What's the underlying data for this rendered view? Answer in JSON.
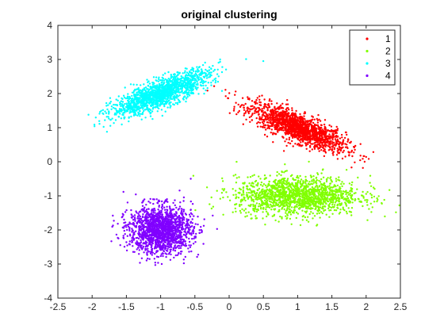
{
  "chart_data": {
    "type": "scatter",
    "title": "original clustering",
    "xlabel": "",
    "ylabel": "",
    "xlim": [
      -2.5,
      2.5
    ],
    "ylim": [
      -4,
      4
    ],
    "xticks": [
      -2.5,
      -2,
      -1.5,
      -1,
      -0.5,
      0,
      0.5,
      1,
      1.5,
      2,
      2.5
    ],
    "xtick_labels": [
      "-2.5",
      "-2",
      "-1.5",
      "-1",
      "-0.5",
      "0",
      "0.5",
      "1",
      "1.5",
      "2",
      "2.5"
    ],
    "yticks": [
      -4,
      -3,
      -2,
      -1,
      0,
      1,
      2,
      3,
      4
    ],
    "ytick_labels": [
      "-4",
      "-3",
      "-2",
      "-1",
      "0",
      "1",
      "2",
      "3",
      "4"
    ],
    "grid": false,
    "legend_position": "top-right",
    "series": [
      {
        "name": "1",
        "color": "#ff0000",
        "center": [
          1.0,
          1.0
        ],
        "spread": [
          0.35,
          0.35
        ],
        "rho": -0.8,
        "count": 1600
      },
      {
        "name": "2",
        "color": "#80ff00",
        "center": [
          1.0,
          -1.0
        ],
        "spread": [
          0.45,
          0.28
        ],
        "rho": 0.0,
        "count": 1600
      },
      {
        "name": "3",
        "color": "#00ffff",
        "center": [
          -1.0,
          2.0
        ],
        "spread": [
          0.35,
          0.33
        ],
        "rho": 0.8,
        "count": 1600
      },
      {
        "name": "4",
        "color": "#8000ff",
        "center": [
          -1.0,
          -2.0
        ],
        "spread": [
          0.23,
          0.35
        ],
        "rho": 0.0,
        "count": 1600
      }
    ]
  }
}
